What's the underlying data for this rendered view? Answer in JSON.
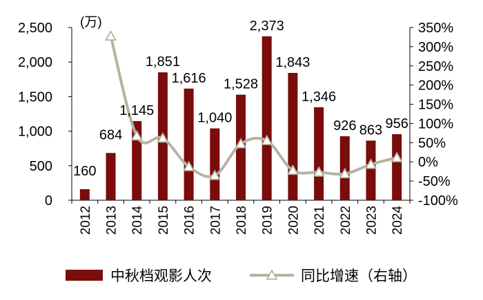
{
  "chart_data": {
    "type": "bar+line",
    "categories": [
      "2012",
      "2013",
      "2014",
      "2015",
      "2016",
      "2017",
      "2018",
      "2019",
      "2020",
      "2021",
      "2022",
      "2023",
      "2024"
    ],
    "series": [
      {
        "name": "中秋档观影人次",
        "type": "bar",
        "axis": "left",
        "color": "#7a0c0c",
        "values": [
          160,
          684,
          1145,
          1851,
          1616,
          1040,
          1528,
          2373,
          1843,
          1346,
          926,
          863,
          956
        ],
        "labels": [
          "160",
          "684",
          "1,145",
          "1,851",
          "1,616",
          "1,040",
          "1,528",
          "2,373",
          "1,843",
          "1,346",
          "926",
          "863",
          "956"
        ]
      },
      {
        "name": "同比增速（右轴）",
        "type": "line",
        "axis": "right",
        "color": "#b5b29f",
        "marker": "triangle",
        "values": [
          null,
          3.275,
          0.674,
          0.617,
          -0.127,
          -0.356,
          0.469,
          0.553,
          -0.223,
          -0.27,
          -0.312,
          -0.068,
          0.108
        ]
      }
    ],
    "left_axis": {
      "unit_label": "(万)",
      "ylim": [
        0,
        2500
      ],
      "ticks": [
        "0",
        "500",
        "1,000",
        "1,500",
        "2,000",
        "2,500"
      ],
      "tick_values": [
        0,
        500,
        1000,
        1500,
        2000,
        2500
      ]
    },
    "right_axis": {
      "ylim": [
        -1.0,
        3.5
      ],
      "ticks": [
        "-100%",
        "-50%",
        "0%",
        "50%",
        "100%",
        "150%",
        "200%",
        "250%",
        "300%",
        "350%"
      ],
      "tick_values": [
        -1.0,
        -0.5,
        0,
        0.5,
        1.0,
        1.5,
        2.0,
        2.5,
        3.0,
        3.5
      ]
    },
    "legend_position": "bottom",
    "grid": false
  }
}
